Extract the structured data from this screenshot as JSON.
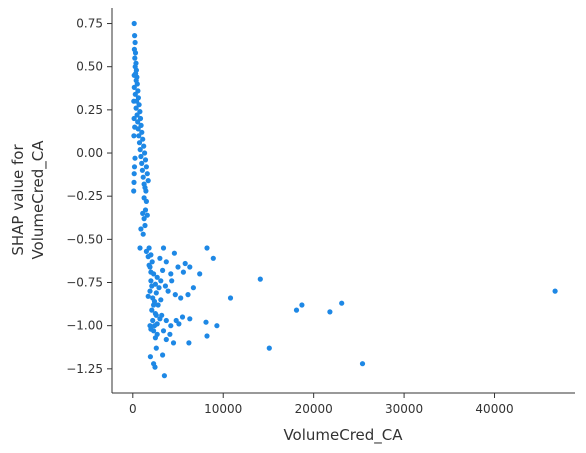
{
  "chart_data": {
    "type": "scatter",
    "title": "",
    "xlabel": "VolumeCred_CA",
    "ylabel_lines": [
      "SHAP value for",
      "VolumeCred_CA"
    ],
    "xlim": [
      -2300,
      48900
    ],
    "ylim": [
      -1.39,
      0.84
    ],
    "xticks": [
      0,
      10000,
      20000,
      30000,
      40000
    ],
    "xtick_labels": [
      "0",
      "10000",
      "20000",
      "30000",
      "40000"
    ],
    "yticks": [
      0.75,
      0.5,
      0.25,
      0.0,
      -0.25,
      -0.5,
      -0.75,
      -1.0,
      -1.25
    ],
    "ytick_labels": [
      "0.75",
      "0.50",
      "0.25",
      "0.00",
      "−0.25",
      "−0.50",
      "−0.75",
      "−1.00",
      "−1.25"
    ],
    "grid": false,
    "point_color": "#1e88e5",
    "points": [
      [
        150,
        0.75
      ],
      [
        200,
        0.68
      ],
      [
        250,
        0.64
      ],
      [
        180,
        0.6
      ],
      [
        300,
        0.58
      ],
      [
        220,
        0.55
      ],
      [
        350,
        0.52
      ],
      [
        260,
        0.5
      ],
      [
        400,
        0.48
      ],
      [
        310,
        0.46
      ],
      [
        450,
        0.44
      ],
      [
        380,
        0.42
      ],
      [
        500,
        0.4
      ],
      [
        170,
        0.38
      ],
      [
        560,
        0.36
      ],
      [
        280,
        0.34
      ],
      [
        620,
        0.32
      ],
      [
        420,
        0.3
      ],
      [
        700,
        0.28
      ],
      [
        360,
        0.26
      ],
      [
        780,
        0.24
      ],
      [
        480,
        0.22
      ],
      [
        850,
        0.2
      ],
      [
        540,
        0.18
      ],
      [
        920,
        0.16
      ],
      [
        600,
        0.14
      ],
      [
        1000,
        0.12
      ],
      [
        660,
        0.1
      ],
      [
        1100,
        0.08
      ],
      [
        740,
        0.06
      ],
      [
        1200,
        0.04
      ],
      [
        820,
        0.02
      ],
      [
        1300,
        0.0
      ],
      [
        900,
        -0.02
      ],
      [
        1400,
        -0.04
      ],
      [
        980,
        -0.06
      ],
      [
        1500,
        -0.08
      ],
      [
        1060,
        -0.1
      ],
      [
        1600,
        -0.12
      ],
      [
        1150,
        -0.14
      ],
      [
        1700,
        -0.16
      ],
      [
        1250,
        -0.18
      ],
      [
        1350,
        -0.2
      ],
      [
        1450,
        -0.22
      ],
      [
        100,
        -0.22
      ],
      [
        130,
        -0.17
      ],
      [
        160,
        -0.12
      ],
      [
        190,
        -0.08
      ],
      [
        240,
        -0.03
      ],
      [
        120,
        0.1
      ],
      [
        140,
        0.2
      ],
      [
        110,
        0.3
      ],
      [
        160,
        0.45
      ],
      [
        210,
        0.15
      ],
      [
        1250,
        -0.26
      ],
      [
        1500,
        -0.28
      ],
      [
        1400,
        -0.33
      ],
      [
        1600,
        -0.36
      ],
      [
        1100,
        -0.35
      ],
      [
        1250,
        -0.38
      ],
      [
        1350,
        -0.42
      ],
      [
        900,
        -0.44
      ],
      [
        1150,
        -0.47
      ],
      [
        800,
        -0.55
      ],
      [
        1800,
        -0.55
      ],
      [
        2000,
        -0.59
      ],
      [
        2150,
        -0.63
      ],
      [
        1900,
        -0.66
      ],
      [
        2300,
        -0.7
      ],
      [
        2000,
        -0.74
      ],
      [
        2500,
        -0.76
      ],
      [
        1900,
        -0.8
      ],
      [
        2200,
        -0.84
      ],
      [
        2400,
        -0.86
      ],
      [
        2800,
        -0.88
      ],
      [
        2100,
        -0.91
      ],
      [
        2600,
        -0.94
      ],
      [
        3000,
        -0.96
      ],
      [
        1900,
        -1.0
      ],
      [
        2300,
        -1.03
      ],
      [
        2500,
        -1.07
      ],
      [
        2000,
        -1.02
      ],
      [
        2700,
        -1.05
      ],
      [
        1950,
        -1.18
      ],
      [
        2300,
        -1.22
      ],
      [
        2450,
        -1.24
      ],
      [
        3300,
        -1.17
      ],
      [
        3500,
        -1.29
      ],
      [
        2600,
        -1.13
      ],
      [
        3000,
        -0.61
      ],
      [
        3400,
        -0.55
      ],
      [
        3700,
        -0.63
      ],
      [
        3300,
        -0.68
      ],
      [
        4200,
        -0.7
      ],
      [
        4600,
        -0.58
      ],
      [
        5000,
        -0.66
      ],
      [
        5600,
        -0.69
      ],
      [
        6300,
        -0.66
      ],
      [
        5800,
        -0.64
      ],
      [
        7400,
        -0.7
      ],
      [
        8200,
        -0.55
      ],
      [
        8900,
        -0.61
      ],
      [
        3100,
        -0.74
      ],
      [
        3600,
        -0.77
      ],
      [
        4300,
        -0.74
      ],
      [
        3900,
        -0.8
      ],
      [
        4700,
        -0.82
      ],
      [
        5300,
        -0.84
      ],
      [
        6100,
        -0.82
      ],
      [
        6700,
        -0.78
      ],
      [
        3200,
        -0.94
      ],
      [
        3700,
        -0.97
      ],
      [
        4200,
        -1.0
      ],
      [
        4800,
        -0.97
      ],
      [
        5500,
        -0.95
      ],
      [
        3400,
        -1.03
      ],
      [
        4100,
        -1.05
      ],
      [
        3700,
        -1.08
      ],
      [
        4500,
        -1.1
      ],
      [
        5100,
        -0.99
      ],
      [
        6200,
        -1.1
      ],
      [
        6300,
        -0.96
      ],
      [
        8100,
        -0.98
      ],
      [
        9300,
        -1.0
      ],
      [
        8200,
        -1.06
      ],
      [
        10800,
        -0.84
      ],
      [
        14100,
        -0.73
      ],
      [
        15100,
        -1.13
      ],
      [
        18100,
        -0.91
      ],
      [
        18700,
        -0.88
      ],
      [
        21800,
        -0.92
      ],
      [
        23100,
        -0.87
      ],
      [
        25400,
        -1.22
      ],
      [
        46700,
        -0.8
      ],
      [
        2700,
        -0.72
      ],
      [
        2900,
        -0.78
      ],
      [
        2600,
        -0.81
      ],
      [
        3100,
        -0.85
      ],
      [
        2200,
        -0.97
      ],
      [
        2400,
        -1.0
      ],
      [
        2700,
        -0.99
      ],
      [
        1700,
        -0.6
      ],
      [
        1500,
        -0.57
      ],
      [
        1800,
        -0.65
      ],
      [
        2000,
        -0.69
      ],
      [
        2100,
        -0.77
      ],
      [
        1700,
        -0.83
      ],
      [
        2300,
        -0.88
      ],
      [
        2500,
        -0.93
      ]
    ]
  }
}
